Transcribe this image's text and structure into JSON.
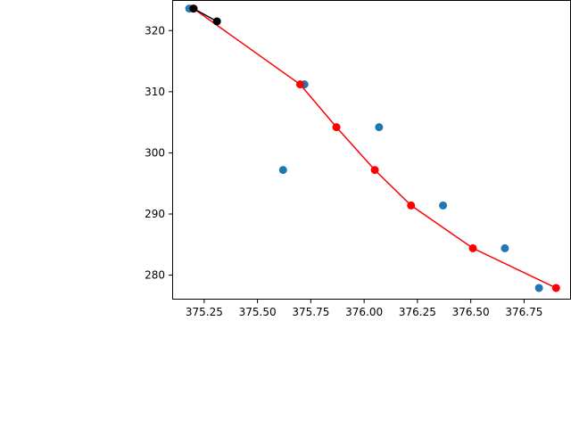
{
  "chart_data": {
    "type": "scatter",
    "title": "",
    "xlabel": "",
    "ylabel": "",
    "xlim": [
      375.1,
      376.97
    ],
    "ylim": [
      276.0,
      325.0
    ],
    "grid": false,
    "xticks": [
      375.25,
      375.5,
      375.75,
      376.0,
      376.25,
      376.5,
      376.75
    ],
    "xtick_labels": [
      "375.25",
      "375.50",
      "375.75",
      "376.00",
      "376.25",
      "376.50",
      "376.75"
    ],
    "yticks": [
      280,
      290,
      300,
      310,
      320
    ],
    "ytick_labels": [
      "280",
      "290",
      "300",
      "310",
      "320"
    ],
    "series": [
      {
        "type": "scatter",
        "color": "#1f77b4",
        "points": [
          {
            "x": 375.18,
            "y": 323.6
          },
          {
            "x": 375.72,
            "y": 311.2
          },
          {
            "x": 375.62,
            "y": 297.2
          },
          {
            "x": 376.07,
            "y": 304.2
          },
          {
            "x": 376.37,
            "y": 291.4
          },
          {
            "x": 376.66,
            "y": 284.4
          },
          {
            "x": 376.82,
            "y": 277.9
          }
        ]
      },
      {
        "type": "line",
        "color": "#ff0000",
        "markers": true,
        "points": [
          {
            "x": 375.2,
            "y": 323.6
          },
          {
            "x": 375.7,
            "y": 311.2
          },
          {
            "x": 375.87,
            "y": 304.2
          },
          {
            "x": 376.05,
            "y": 297.2
          },
          {
            "x": 376.22,
            "y": 291.4
          },
          {
            "x": 376.51,
            "y": 284.4
          },
          {
            "x": 376.9,
            "y": 277.9
          }
        ]
      },
      {
        "type": "line",
        "color": "#000000",
        "markers": true,
        "points": [
          {
            "x": 375.2,
            "y": 323.6
          },
          {
            "x": 375.31,
            "y": 321.5
          }
        ]
      }
    ]
  }
}
